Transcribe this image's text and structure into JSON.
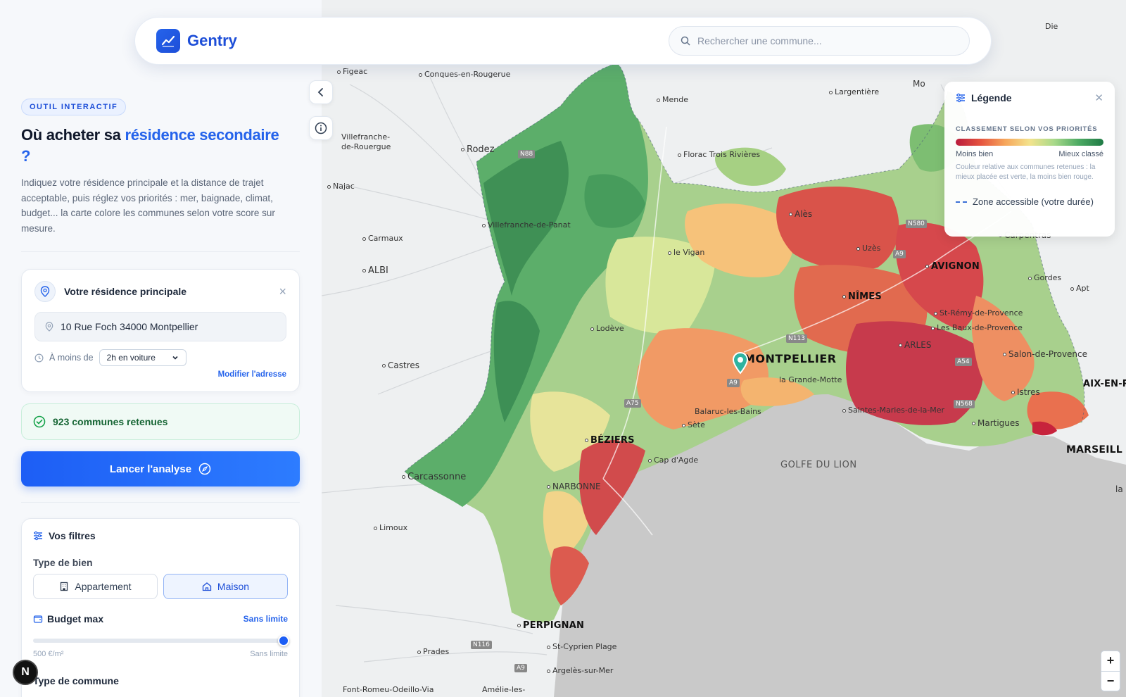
{
  "app": {
    "name": "Gentry"
  },
  "header": {
    "search_placeholder": "Rechercher une commune..."
  },
  "sidebar": {
    "tag": "OUTIL INTERACTIF",
    "title_part1": "Où acheter sa ",
    "title_highlight": "résidence secondaire",
    "title_part2": "?",
    "description": "Indiquez votre résidence principale et la distance de trajet acceptable, puis réglez vos priorités : mer, baignade, climat, budget... la carte colore les communes selon votre score sur mesure.",
    "residence": {
      "title": "Votre résidence principale",
      "address": "10 Rue Foch 34000 Montpellier",
      "time_label": "À moins de",
      "time_value": "2h en voiture",
      "modify_label": "Modifier l'adresse"
    },
    "count_text": "923 communes retenues",
    "launch_label": "Lancer l'analyse",
    "filters": {
      "title": "Vos filtres",
      "type_label": "Type de bien",
      "options": [
        "Appartement",
        "Maison"
      ],
      "selected": "Maison",
      "budget_label": "Budget max",
      "budget_value": "Sans limite",
      "budget_slider": 1.0,
      "slider_min": "500 €/m²",
      "slider_max": "Sans limite",
      "commune_type_label": "Type de commune"
    }
  },
  "legend": {
    "title": "Légende",
    "subtitle": "CLASSEMENT SELON VOS PRIORITÉS",
    "low": "Moins bien",
    "high": "Mieux classé",
    "note": "Couleur relative aux communes retenues : la mieux placée est verte, la moins bien rouge.",
    "zone": "Zone accessible (votre durée)"
  },
  "map": {
    "places": [
      "Figeac",
      "Conques-en-Rougerue",
      "Mende",
      "Largentière",
      "Villefranche-de-Rouergue",
      "Rodez",
      "Florac Trois Rivières",
      "Najac",
      "Alès",
      "Carpentras",
      "Villefranche-de-Panat",
      "Carmaux",
      "le Vigan",
      "Uzès",
      "AVIGNON",
      "Gordes",
      "Apt",
      "ALBI",
      "NÎMES",
      "St-Rémy-de-Provence",
      "Les Baux-de-Provence",
      "Lodève",
      "ARLES",
      "Salon-de-Provence",
      "Castres",
      "MONTPELLIER",
      "la Grande-Motte",
      "A54",
      "AIX-EN-P",
      "Istres",
      "Balaruc-les-Bains",
      "Saintes-Maries-de-la-Mer",
      "Sète",
      "Martigues",
      "BÉZIERS",
      "MARSEILL",
      "Cap d'Agde",
      "GOLFE DU LION",
      "Carcassonne",
      "NARBONNE",
      "Limoux",
      "PERPIGNAN",
      "St-Cyprien Plage",
      "Prades",
      "Argelès-sur-Mer",
      "Font-Romeu-Odeillo-Via",
      "Amélie-les-",
      "Die",
      "Mo",
      "la"
    ],
    "roads": [
      "N88",
      "A75",
      "N113",
      "A9",
      "N580",
      "A9",
      "N568",
      "N116",
      "A9",
      "A54"
    ],
    "zoom_in": "+",
    "zoom_out": "−"
  },
  "badge": "N"
}
